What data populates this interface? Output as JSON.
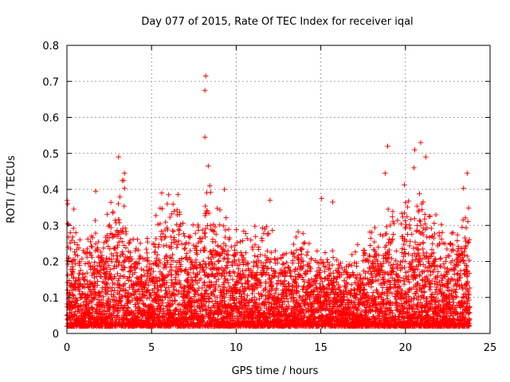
{
  "chart_data": {
    "type": "scatter",
    "title": "Day 077 of 2015, Rate Of TEC Index for receiver iqal",
    "xlabel": "GPS time / hours",
    "ylabel": "ROTI / TECUs",
    "xlim": [
      0,
      25
    ],
    "ylim": [
      0,
      0.8
    ],
    "xticks": [
      0,
      5,
      10,
      15,
      20,
      25
    ],
    "yticks": [
      0,
      0.1,
      0.2,
      0.3,
      0.4,
      0.5,
      0.6,
      0.7,
      0.8
    ],
    "xtick_labels": [
      "0",
      "5",
      "10",
      "15",
      "20",
      "25"
    ],
    "ytick_labels": [
      "0",
      "0.1",
      "0.2",
      "0.3",
      "0.4",
      "0.5",
      "0.6",
      "0.7",
      "0.8"
    ],
    "grid": true,
    "marker": "+",
    "color": "#ff0000",
    "series": [
      {
        "name": "ROTI",
        "highlight_points": [
          {
            "x": 8.2,
            "y": 0.715
          },
          {
            "x": 8.15,
            "y": 0.675
          },
          {
            "x": 8.15,
            "y": 0.545
          },
          {
            "x": 8.35,
            "y": 0.465
          },
          {
            "x": 3.05,
            "y": 0.49
          },
          {
            "x": 3.4,
            "y": 0.445
          },
          {
            "x": 3.35,
            "y": 0.425
          },
          {
            "x": 18.95,
            "y": 0.52
          },
          {
            "x": 18.8,
            "y": 0.445
          },
          {
            "x": 20.9,
            "y": 0.53
          },
          {
            "x": 20.55,
            "y": 0.51
          },
          {
            "x": 21.2,
            "y": 0.49
          },
          {
            "x": 20.5,
            "y": 0.46
          },
          {
            "x": 23.65,
            "y": 0.445
          },
          {
            "x": 15.05,
            "y": 0.375
          },
          {
            "x": 15.7,
            "y": 0.365
          },
          {
            "x": 12.0,
            "y": 0.37
          },
          {
            "x": 9.3,
            "y": 0.4
          },
          {
            "x": 5.6,
            "y": 0.39
          },
          {
            "x": 1.7,
            "y": 0.395
          },
          {
            "x": 0.05,
            "y": 0.36
          }
        ],
        "envelope_hours": [
          0,
          0.5,
          1,
          1.5,
          2,
          2.5,
          3,
          3.5,
          4,
          4.5,
          5,
          5.5,
          6,
          6.5,
          7,
          7.5,
          8,
          8.5,
          9,
          9.5,
          10,
          10.5,
          11,
          11.5,
          12,
          12.5,
          13,
          13.5,
          14,
          14.5,
          15,
          15.5,
          16,
          16.5,
          17,
          17.5,
          18,
          18.5,
          19,
          19.5,
          20,
          20.5,
          21,
          21.5,
          22,
          22.5,
          23,
          23.5,
          23.8
        ],
        "envelope_upper": [
          0.33,
          0.3,
          0.22,
          0.32,
          0.24,
          0.35,
          0.4,
          0.36,
          0.25,
          0.25,
          0.22,
          0.35,
          0.36,
          0.38,
          0.28,
          0.3,
          0.36,
          0.4,
          0.32,
          0.3,
          0.28,
          0.26,
          0.3,
          0.28,
          0.3,
          0.22,
          0.22,
          0.28,
          0.26,
          0.22,
          0.25,
          0.22,
          0.2,
          0.22,
          0.24,
          0.22,
          0.3,
          0.28,
          0.36,
          0.3,
          0.38,
          0.36,
          0.35,
          0.32,
          0.3,
          0.26,
          0.34,
          0.38,
          0.32
        ]
      }
    ]
  }
}
